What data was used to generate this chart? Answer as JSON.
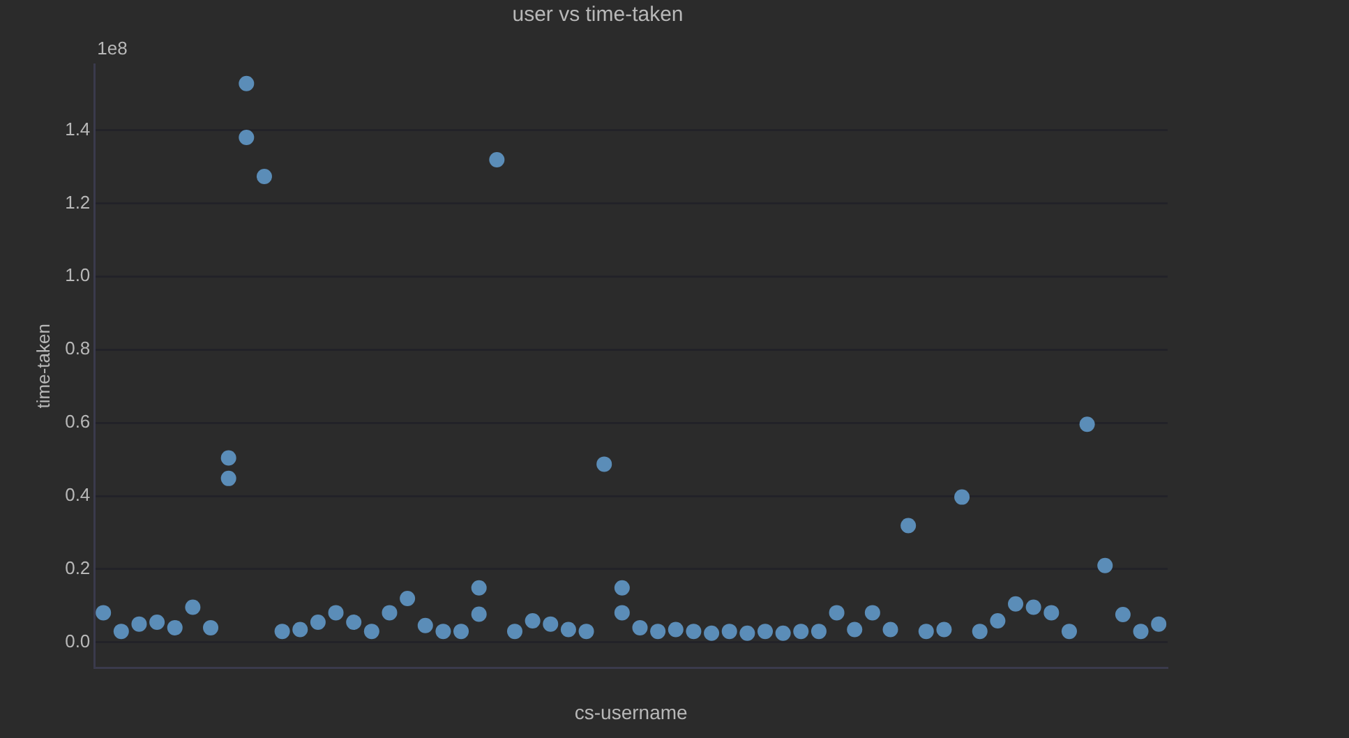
{
  "chart_data": {
    "type": "scatter",
    "title": "user vs time-taken",
    "xlabel": "cs-username",
    "ylabel": "time-taken",
    "annotations": [
      "1e8"
    ],
    "categories": [
      null,
      null,
      null,
      null,
      null,
      null,
      null,
      null,
      null,
      null,
      null,
      null,
      null,
      null,
      null,
      null,
      null,
      null,
      null,
      null,
      null,
      null,
      null,
      null,
      null,
      null,
      null,
      null,
      null,
      null,
      null,
      null,
      null,
      null,
      null,
      null,
      null,
      null,
      null,
      null,
      null,
      null,
      null,
      null,
      null,
      null,
      null,
      null,
      null,
      null,
      null,
      null,
      null,
      null,
      null,
      null,
      null,
      null,
      null,
      null
    ],
    "series": [
      {
        "color": "#5b8db8",
        "values": [
          0.081,
          0.03,
          0.05,
          0.055,
          0.04,
          0.096,
          0.04,
          0.504,
          1.527,
          1.273,
          0.03,
          0.035,
          0.055,
          0.081,
          0.055,
          0.03,
          0.081,
          0.12,
          0.046,
          0.03,
          0.03,
          0.149,
          1.319,
          0.03,
          0.059,
          0.05,
          0.035,
          0.03,
          0.487,
          0.149,
          0.04,
          0.03,
          0.035,
          0.03,
          0.025,
          0.03,
          0.025,
          0.03,
          0.025,
          0.03,
          0.03,
          0.081,
          0.035,
          0.081,
          0.035,
          0.319,
          0.03,
          0.035,
          0.397,
          0.03,
          0.059,
          0.105,
          0.096,
          0.081,
          0.03,
          0.596,
          0.21,
          0.076,
          0.03,
          0.05
        ]
      },
      {
        "color": "#5b8db8",
        "values": [
          null,
          null,
          null,
          null,
          null,
          null,
          null,
          0.448,
          1.38,
          null,
          null,
          null,
          null,
          null,
          null,
          null,
          null,
          null,
          null,
          null,
          null,
          0.077,
          null,
          null,
          null,
          null,
          null,
          null,
          null,
          0.081,
          null,
          null,
          null,
          null,
          null,
          null,
          null,
          null,
          null,
          null,
          null,
          null,
          null,
          null,
          null,
          null,
          null,
          null,
          null,
          null,
          null,
          null,
          null,
          null,
          null,
          null,
          null,
          null,
          null,
          null
        ]
      }
    ],
    "ylim": [
      -0.07,
      1.58
    ],
    "yticks": [
      {
        "value": 0,
        "label": "0.0"
      },
      0.2,
      0.4,
      0.6,
      0.8,
      {
        "value": 1,
        "label": "1.0"
      },
      1.2,
      1.4
    ],
    "grid": "y",
    "legend": false,
    "marker": "circle"
  }
}
